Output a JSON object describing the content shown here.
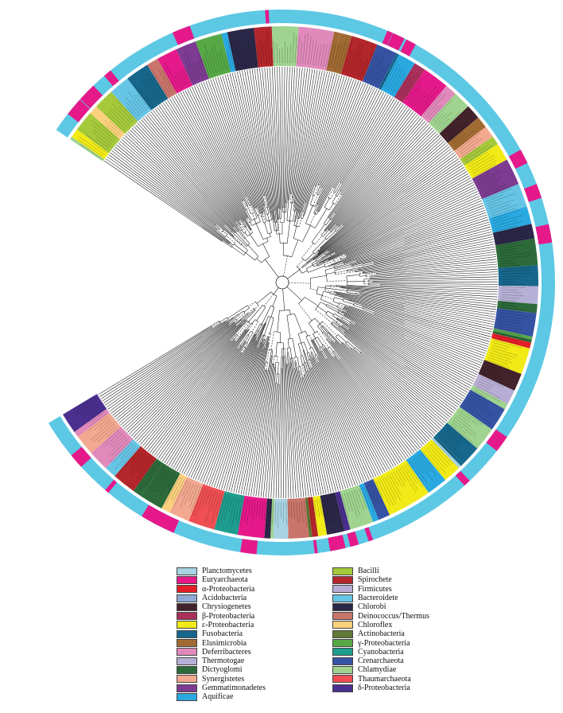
{
  "legend": {
    "left": [
      {
        "label": "Planctomycetes",
        "color": "#a7d3e3"
      },
      {
        "label": "Euryarchaeota",
        "color": "#e5198a"
      },
      {
        "label": "α-Proteobacteria",
        "color": "#e41f2a"
      },
      {
        "label": "Acidobacteria",
        "color": "#8fa8d6"
      },
      {
        "label": "Chrysiogenetes",
        "color": "#42222b"
      },
      {
        "label": "β-Proteobacteria",
        "color": "#a8305a"
      },
      {
        "label": "ε-Proteobacteria",
        "color": "#f1ea16"
      },
      {
        "label": "Fusobacteria",
        "color": "#17678c"
      },
      {
        "label": "Elusimicrobia",
        "color": "#a06a32"
      },
      {
        "label": "Deferribacteres",
        "color": "#e08abb"
      },
      {
        "label": "Thermotogae",
        "color": "#b6b0d6"
      },
      {
        "label": "Dictyoglomi",
        "color": "#2c6a3a"
      },
      {
        "label": "Synergistetes",
        "color": "#f2a98f"
      },
      {
        "label": "Gemmatimonadetes",
        "color": "#7d3c92"
      },
      {
        "label": "Aquificae",
        "color": "#2aa9e1"
      }
    ],
    "right": [
      {
        "label": "Bacilli",
        "color": "#a5c93b"
      },
      {
        "label": "Spirochete",
        "color": "#b3262b"
      },
      {
        "label": "Firmicutes",
        "color": "#b8aed5"
      },
      {
        "label": "Bacteroidete",
        "color": "#66c4e5"
      },
      {
        "label": "Chlorobi",
        "color": "#2b2748"
      },
      {
        "label": "Deinococcus/Thermus",
        "color": "#c9756b"
      },
      {
        "label": "Chloroflex",
        "color": "#fbd17e"
      },
      {
        "label": "Actinobacteria",
        "color": "#5e7a34"
      },
      {
        "label": "γ-Proteobacteria",
        "color": "#57a846"
      },
      {
        "label": "Cyanobacteria",
        "color": "#1e9d8f"
      },
      {
        "label": "Crenarchaeota",
        "color": "#3653a3"
      },
      {
        "label": "Chlamydiae",
        "color": "#9fd38f"
      },
      {
        "label": "Thaumarchaeota",
        "color": "#ef4f53"
      },
      {
        "label": "δ-Proteobacteria",
        "color": "#4b2f8f"
      }
    ]
  },
  "outer_ring": {
    "main_color": "#5cc8e4",
    "highlight_color": "#e5198a"
  }
}
